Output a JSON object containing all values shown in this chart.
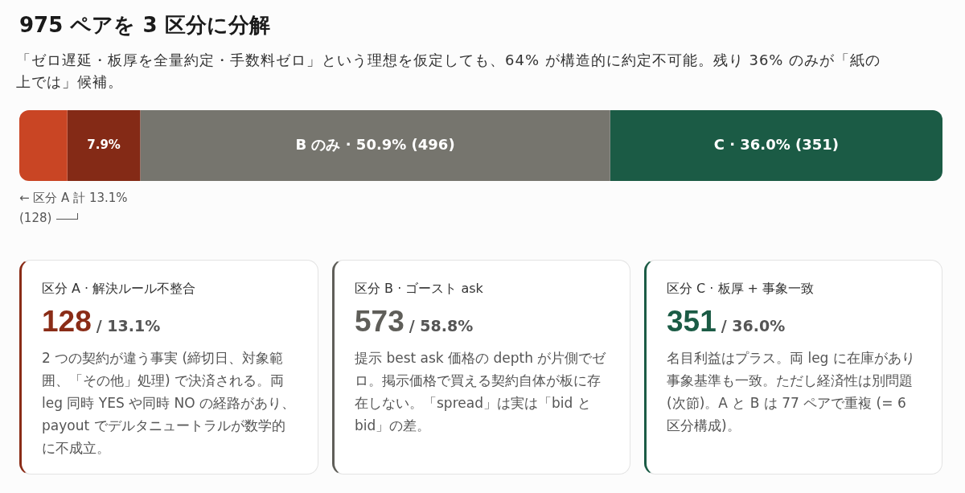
{
  "chart_data": [
    {
      "type": "bar",
      "orientation": "horizontal",
      "stacked": true,
      "title": "975 ペアを 3 区分に分解",
      "subtitle": "「ゼロ遅延・板厚を全量約定・手数料ゼロ」という理想を仮定しても、64% が構造的に約定不可能。残り 36% のみが「紙の上では」候補。",
      "categories": [
        null
      ],
      "tick_labels": false,
      "series": [
        {
          "color": "#c94524",
          "values": [
            5.2
          ]
        },
        {
          "color": "#842a16",
          "values": [
            7.9
          ],
          "value_labels": [
            "7.9%"
          ]
        },
        {
          "color": "#76756e",
          "values": [
            50.9
          ],
          "value_labels": [
            "B のみ · 50.9% (496)"
          ]
        },
        {
          "color": "#1b5b45",
          "values": [
            36.0
          ],
          "value_labels": [
            "C · 36.0% (351)"
          ]
        }
      ],
      "annotations": [
        "← 区分 A 計 13.1% (128)"
      ]
    },
    {
      "type": "other",
      "title": "区分 A · 解決ルール不整合",
      "color": "#8a2c17",
      "annotations": [
        "128",
        "/ 13.1%",
        "2 つの契約が違う事実 (締切日、対象範囲、「その他」処理) で決済される。両 leg 同時 YES や同時 NO の経路があり、payout でデルタニュートラルが数学的に不成立。"
      ]
    },
    {
      "type": "other",
      "title": "区分 B · ゴースト ask",
      "color": "#5f5e59",
      "annotations": [
        "573",
        "/ 58.8%",
        "提示 best ask 価格の depth が片側でゼロ。掲示価格で買える契約自体が板に存在しない。「spread」は実は「bid と bid」の差。"
      ]
    },
    {
      "type": "other",
      "title": "区分 C · 板厚 + 事象一致",
      "color": "#1b5b45",
      "annotations": [
        "351",
        "/ 36.0%",
        "名目利益はプラス。両 leg に在庫があり事象基準も一致。ただし経済性は別問題 (次節)。A と B は 77 ペアで重複 (= 6 区分構成)。"
      ]
    }
  ]
}
